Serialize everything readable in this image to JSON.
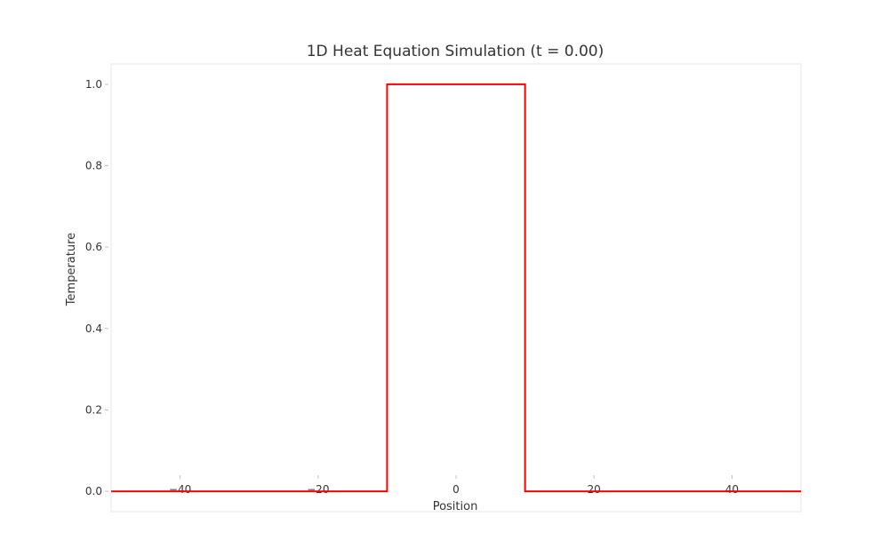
{
  "chart_data": {
    "type": "line",
    "title": "1D Heat Equation Simulation (t = 0.00)",
    "xlabel": "Position",
    "ylabel": "Temperature",
    "xlim": [
      -50,
      50
    ],
    "ylim": [
      -0.05,
      1.05
    ],
    "xticks": [
      -40,
      -20,
      0,
      20,
      40
    ],
    "yticks": [
      0.0,
      0.2,
      0.4,
      0.6,
      0.8,
      1.0
    ],
    "xtick_labels": [
      "−40",
      "−20",
      "0",
      "20",
      "40"
    ],
    "ytick_labels": [
      "0.0",
      "0.2",
      "0.4",
      "0.6",
      "0.8",
      "1.0"
    ],
    "grid": false,
    "series": [
      {
        "color": "#ff0000",
        "x": [
          -50,
          -10,
          -10,
          10,
          10,
          50
        ],
        "y": [
          0,
          0,
          1,
          1,
          0,
          0
        ]
      }
    ]
  }
}
